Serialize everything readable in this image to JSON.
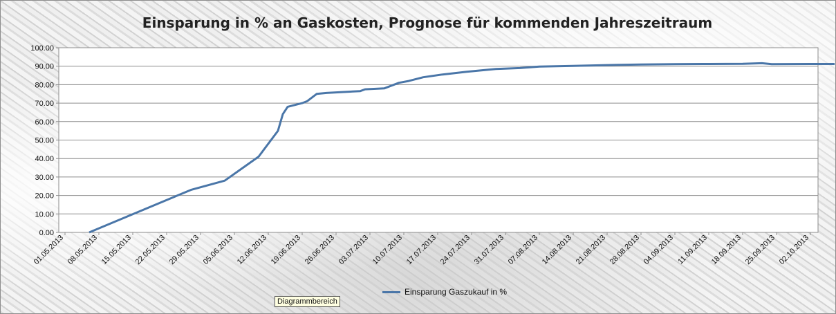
{
  "chart_data": {
    "type": "line",
    "title": "Einsparung in % an Gaskosten, Prognose für kommenden Jahreszeitraum",
    "xlabel": "",
    "ylabel": "",
    "ylim": [
      0,
      100
    ],
    "yticks": [
      "100.00",
      "90.00",
      "80.00",
      "70.00",
      "60.00",
      "50.00",
      "40.00",
      "30.00",
      "20.00",
      "10.00",
      "0.00"
    ],
    "xticks": [
      "01.05.2013",
      "08.05.2013",
      "15.05.2013",
      "22.05.2013",
      "29.05.2013",
      "05.06.2013",
      "12.06.2013",
      "19.06.2013",
      "26.06.2013",
      "03.07.2013",
      "10.07.2013",
      "17.07.2013",
      "24.07.2013",
      "31.07.2013",
      "07.08.2013",
      "14.08.2013",
      "21.08.2013",
      "28.08.2013",
      "04.09.2013",
      "11.09.2013",
      "18.09.2013",
      "25.09.2013",
      "02.10.2013"
    ],
    "grid": true,
    "legend_position": "bottom",
    "series": [
      {
        "name": "Einsparung Gaszukauf in %",
        "color": "#4a76a8",
        "x": [
          "06.05.2013",
          "27.05.2013",
          "03.06.2013",
          "10.06.2013",
          "14.06.2013",
          "15.06.2013",
          "16.06.2013",
          "19.06.2013",
          "20.06.2013",
          "22.06.2013",
          "24.06.2013",
          "01.07.2013",
          "02.07.2013",
          "06.07.2013",
          "09.07.2013",
          "11.07.2013",
          "14.07.2013",
          "18.07.2013",
          "23.07.2013",
          "29.07.2013",
          "03.08.2013",
          "07.08.2013",
          "14.08.2013",
          "21.08.2013",
          "28.08.2013",
          "04.09.2013",
          "11.09.2013",
          "18.09.2013",
          "22.09.2013",
          "24.09.2013",
          "02.10.2013",
          "07.10.2013"
        ],
        "values": [
          0,
          23,
          28,
          41,
          55,
          64,
          68,
          70,
          71,
          75,
          75.5,
          76.5,
          77.5,
          78,
          81,
          82,
          84,
          85.5,
          87,
          88.5,
          89,
          89.8,
          90.2,
          90.6,
          90.9,
          91.1,
          91.2,
          91.3,
          91.6,
          91.1,
          91.2,
          91.2
        ]
      }
    ]
  },
  "ui": {
    "tooltip": "Diagrammbereich"
  }
}
